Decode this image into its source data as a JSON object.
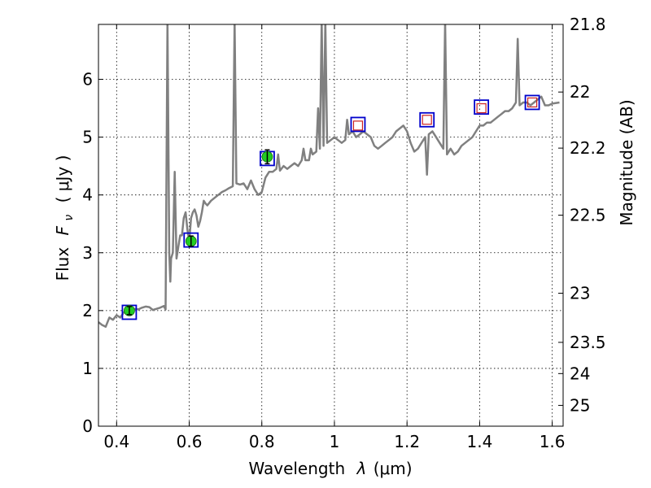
{
  "chart_data": {
    "type": "line",
    "xlabel_text": "Wavelength",
    "xlabel_symbol": "λ",
    "xlabel_unit": "(μm)",
    "ylabel_text": "Flux",
    "ylabel_symbol": "F",
    "ylabel_symbol_sub": "ν",
    "ylabel_unit": "( μJy )",
    "y2label": "Magnitude (AB)",
    "xlim": [
      0.35,
      1.63
    ],
    "ylim": [
      0,
      6.95
    ],
    "grid": true,
    "grid_style": "dotted",
    "x_ticks": [
      0.4,
      0.6,
      0.8,
      1.0,
      1.2,
      1.4,
      1.6
    ],
    "x_tick_labels": [
      "0.4",
      "0.6",
      "0.8",
      "1",
      "1.2",
      "1.4",
      "1.6"
    ],
    "y_ticks": [
      0,
      1,
      2,
      3,
      4,
      5,
      6
    ],
    "y_tick_labels": [
      "0",
      "1",
      "2",
      "3",
      "4",
      "5",
      "6"
    ],
    "y2_ticks": [
      {
        "label": "21.8",
        "flux": 6.95
      },
      {
        "label": "22",
        "flux": 5.78
      },
      {
        "label": "22.2",
        "flux": 4.81
      },
      {
        "label": "22.5",
        "flux": 3.65
      },
      {
        "label": "23",
        "flux": 2.3
      },
      {
        "label": "23.5",
        "flux": 1.45
      },
      {
        "label": "24",
        "flux": 0.91
      },
      {
        "label": "25",
        "flux": 0.36
      }
    ],
    "colors": {
      "spectrum": "#808080",
      "observed_fill": "#22cc22",
      "model_box": "#0000cc",
      "predicted_marker": "#cc2222",
      "errorbar": "#000000"
    },
    "spectrum": {
      "name": "",
      "points": [
        [
          0.35,
          1.8
        ],
        [
          0.36,
          1.75
        ],
        [
          0.37,
          1.72
        ],
        [
          0.38,
          1.88
        ],
        [
          0.39,
          1.84
        ],
        [
          0.4,
          1.92
        ],
        [
          0.41,
          1.88
        ],
        [
          0.42,
          1.97
        ],
        [
          0.43,
          1.99
        ],
        [
          0.44,
          2.0
        ],
        [
          0.45,
          2.03
        ],
        [
          0.46,
          2.02
        ],
        [
          0.47,
          2.05
        ],
        [
          0.48,
          2.07
        ],
        [
          0.49,
          2.06
        ],
        [
          0.5,
          2.01
        ],
        [
          0.51,
          2.03
        ],
        [
          0.52,
          2.05
        ],
        [
          0.53,
          2.08
        ],
        [
          0.535,
          2.02
        ],
        [
          0.54,
          7.0
        ],
        [
          0.545,
          3.0
        ],
        [
          0.548,
          2.5
        ],
        [
          0.55,
          2.9
        ],
        [
          0.555,
          3.0
        ],
        [
          0.56,
          4.4
        ],
        [
          0.565,
          2.9
        ],
        [
          0.57,
          3.1
        ],
        [
          0.575,
          3.3
        ],
        [
          0.58,
          3.3
        ],
        [
          0.585,
          3.6
        ],
        [
          0.59,
          3.7
        ],
        [
          0.595,
          3.4
        ],
        [
          0.6,
          3.2
        ],
        [
          0.605,
          3.6
        ],
        [
          0.61,
          3.7
        ],
        [
          0.615,
          3.75
        ],
        [
          0.62,
          3.65
        ],
        [
          0.625,
          3.45
        ],
        [
          0.63,
          3.55
        ],
        [
          0.635,
          3.7
        ],
        [
          0.64,
          3.9
        ],
        [
          0.645,
          3.85
        ],
        [
          0.65,
          3.82
        ],
        [
          0.66,
          3.9
        ],
        [
          0.67,
          3.95
        ],
        [
          0.68,
          4.0
        ],
        [
          0.69,
          4.05
        ],
        [
          0.7,
          4.08
        ],
        [
          0.71,
          4.12
        ],
        [
          0.72,
          4.15
        ],
        [
          0.725,
          7.0
        ],
        [
          0.73,
          4.2
        ],
        [
          0.74,
          4.18
        ],
        [
          0.75,
          4.2
        ],
        [
          0.76,
          4.1
        ],
        [
          0.77,
          4.25
        ],
        [
          0.78,
          4.1
        ],
        [
          0.79,
          4.0
        ],
        [
          0.8,
          4.05
        ],
        [
          0.81,
          4.3
        ],
        [
          0.82,
          4.4
        ],
        [
          0.83,
          4.4
        ],
        [
          0.84,
          4.45
        ],
        [
          0.845,
          4.7
        ],
        [
          0.85,
          4.42
        ],
        [
          0.86,
          4.5
        ],
        [
          0.87,
          4.45
        ],
        [
          0.88,
          4.5
        ],
        [
          0.89,
          4.55
        ],
        [
          0.9,
          4.5
        ],
        [
          0.91,
          4.6
        ],
        [
          0.915,
          4.8
        ],
        [
          0.92,
          4.6
        ],
        [
          0.93,
          4.6
        ],
        [
          0.935,
          4.8
        ],
        [
          0.94,
          4.7
        ],
        [
          0.95,
          4.75
        ],
        [
          0.955,
          5.5
        ],
        [
          0.96,
          4.8
        ],
        [
          0.965,
          7.0
        ],
        [
          0.97,
          4.85
        ],
        [
          0.975,
          7.0
        ],
        [
          0.98,
          4.9
        ],
        [
          0.99,
          4.95
        ],
        [
          1.0,
          5.0
        ],
        [
          1.01,
          4.95
        ],
        [
          1.02,
          4.9
        ],
        [
          1.03,
          4.95
        ],
        [
          1.035,
          5.3
        ],
        [
          1.04,
          5.05
        ],
        [
          1.05,
          5.1
        ],
        [
          1.06,
          5.0
        ],
        [
          1.07,
          5.05
        ],
        [
          1.08,
          5.1
        ],
        [
          1.09,
          5.05
        ],
        [
          1.1,
          5.0
        ],
        [
          1.11,
          4.85
        ],
        [
          1.12,
          4.8
        ],
        [
          1.13,
          4.85
        ],
        [
          1.14,
          4.9
        ],
        [
          1.15,
          4.95
        ],
        [
          1.16,
          5.0
        ],
        [
          1.17,
          5.1
        ],
        [
          1.18,
          5.15
        ],
        [
          1.19,
          5.2
        ],
        [
          1.2,
          5.1
        ],
        [
          1.21,
          4.9
        ],
        [
          1.22,
          4.75
        ],
        [
          1.23,
          4.8
        ],
        [
          1.24,
          4.9
        ],
        [
          1.25,
          5.0
        ],
        [
          1.255,
          4.35
        ],
        [
          1.26,
          5.05
        ],
        [
          1.27,
          5.1
        ],
        [
          1.28,
          5.0
        ],
        [
          1.29,
          4.9
        ],
        [
          1.3,
          4.8
        ],
        [
          1.305,
          7.0
        ],
        [
          1.31,
          4.7
        ],
        [
          1.32,
          4.8
        ],
        [
          1.33,
          4.7
        ],
        [
          1.34,
          4.75
        ],
        [
          1.35,
          4.85
        ],
        [
          1.36,
          4.9
        ],
        [
          1.37,
          4.95
        ],
        [
          1.38,
          5.0
        ],
        [
          1.39,
          5.1
        ],
        [
          1.4,
          5.2
        ],
        [
          1.41,
          5.2
        ],
        [
          1.42,
          5.25
        ],
        [
          1.43,
          5.25
        ],
        [
          1.44,
          5.3
        ],
        [
          1.45,
          5.35
        ],
        [
          1.46,
          5.4
        ],
        [
          1.47,
          5.45
        ],
        [
          1.48,
          5.45
        ],
        [
          1.49,
          5.5
        ],
        [
          1.5,
          5.6
        ],
        [
          1.505,
          6.7
        ],
        [
          1.51,
          5.55
        ],
        [
          1.52,
          5.6
        ],
        [
          1.53,
          5.6
        ],
        [
          1.54,
          5.55
        ],
        [
          1.55,
          5.6
        ],
        [
          1.56,
          5.65
        ],
        [
          1.57,
          5.7
        ],
        [
          1.58,
          5.55
        ],
        [
          1.59,
          5.55
        ],
        [
          1.6,
          5.58
        ],
        [
          1.62,
          5.6
        ]
      ]
    },
    "model_fluxes": [
      {
        "x": 0.435,
        "y": 1.97
      },
      {
        "x": 0.605,
        "y": 3.22
      },
      {
        "x": 0.815,
        "y": 4.63
      },
      {
        "x": 1.065,
        "y": 5.22
      },
      {
        "x": 1.255,
        "y": 5.3
      },
      {
        "x": 1.405,
        "y": 5.52
      },
      {
        "x": 1.545,
        "y": 5.6
      }
    ],
    "observed": [
      {
        "x": 0.435,
        "y": 2.0,
        "err": 0.07
      },
      {
        "x": 0.605,
        "y": 3.2,
        "err": 0.09
      },
      {
        "x": 0.815,
        "y": 4.66,
        "err": 0.12
      }
    ],
    "predicted": [
      {
        "x": 1.065,
        "y": 5.2
      },
      {
        "x": 1.255,
        "y": 5.3
      },
      {
        "x": 1.405,
        "y": 5.5
      },
      {
        "x": 1.545,
        "y": 5.6
      }
    ]
  }
}
